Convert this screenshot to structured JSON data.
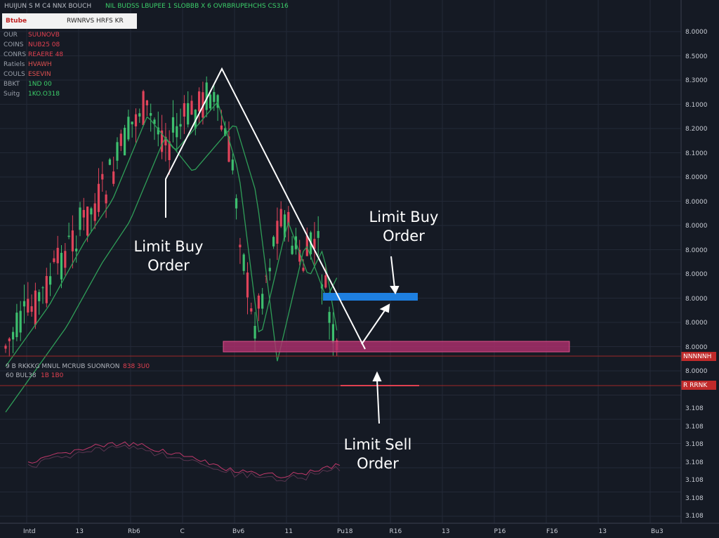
{
  "header": {
    "badge": "Btube",
    "ticker": "RWNRVS HRFS KR",
    "title": "HUIJUN S M  C4  NNX BOUCH",
    "feed": "NIL BUDSS LBUPEE 1 SLOBBB X 6 OVRBRUPEHCHS CS316"
  },
  "info_rows": [
    [
      "OUR",
      "SUUNOVB"
    ],
    [
      "COINS",
      "NUB25 08"
    ],
    [
      "CONRS",
      "REAERE 48"
    ],
    [
      "Ratiels",
      "HVAWH"
    ],
    [
      "COULS",
      "ESEVIN"
    ],
    [
      "BBKT",
      "1ND 00"
    ],
    [
      "Suitg",
      "1KO.O318"
    ]
  ],
  "indicator_labels": [
    "9 B RKKKG  MNUL  MCRUB SUONRON",
    "838 3U0",
    "60 BUL38",
    "1B 1B0"
  ],
  "annotations": [
    [
      "Limit Buy",
      "Order"
    ],
    [
      "Limit Buy",
      "Order"
    ],
    [
      "Limit Sell",
      "Order"
    ]
  ],
  "price_axis": [
    "8.0000",
    "8.5000",
    "8.3000",
    "8.1000",
    "8.2000",
    "8.1000",
    "8.0000",
    "8.0000",
    "8.0000",
    "8.0000",
    "8.0000",
    "8.0000",
    "8.0000",
    "8.0000",
    "8.0000"
  ],
  "price_tags": [
    "NNNNNH",
    "R RRNK"
  ],
  "lower_axis": [
    "3.108",
    "3.108",
    "3.108",
    "3.108",
    "3.108",
    "3.108",
    "3.108"
  ],
  "time_axis": [
    "Intd",
    "13",
    "Rb6",
    "C",
    "Bv6",
    "11",
    "Pu18",
    "R16",
    "13",
    "P16",
    "F16",
    "13",
    "Bu3"
  ]
}
